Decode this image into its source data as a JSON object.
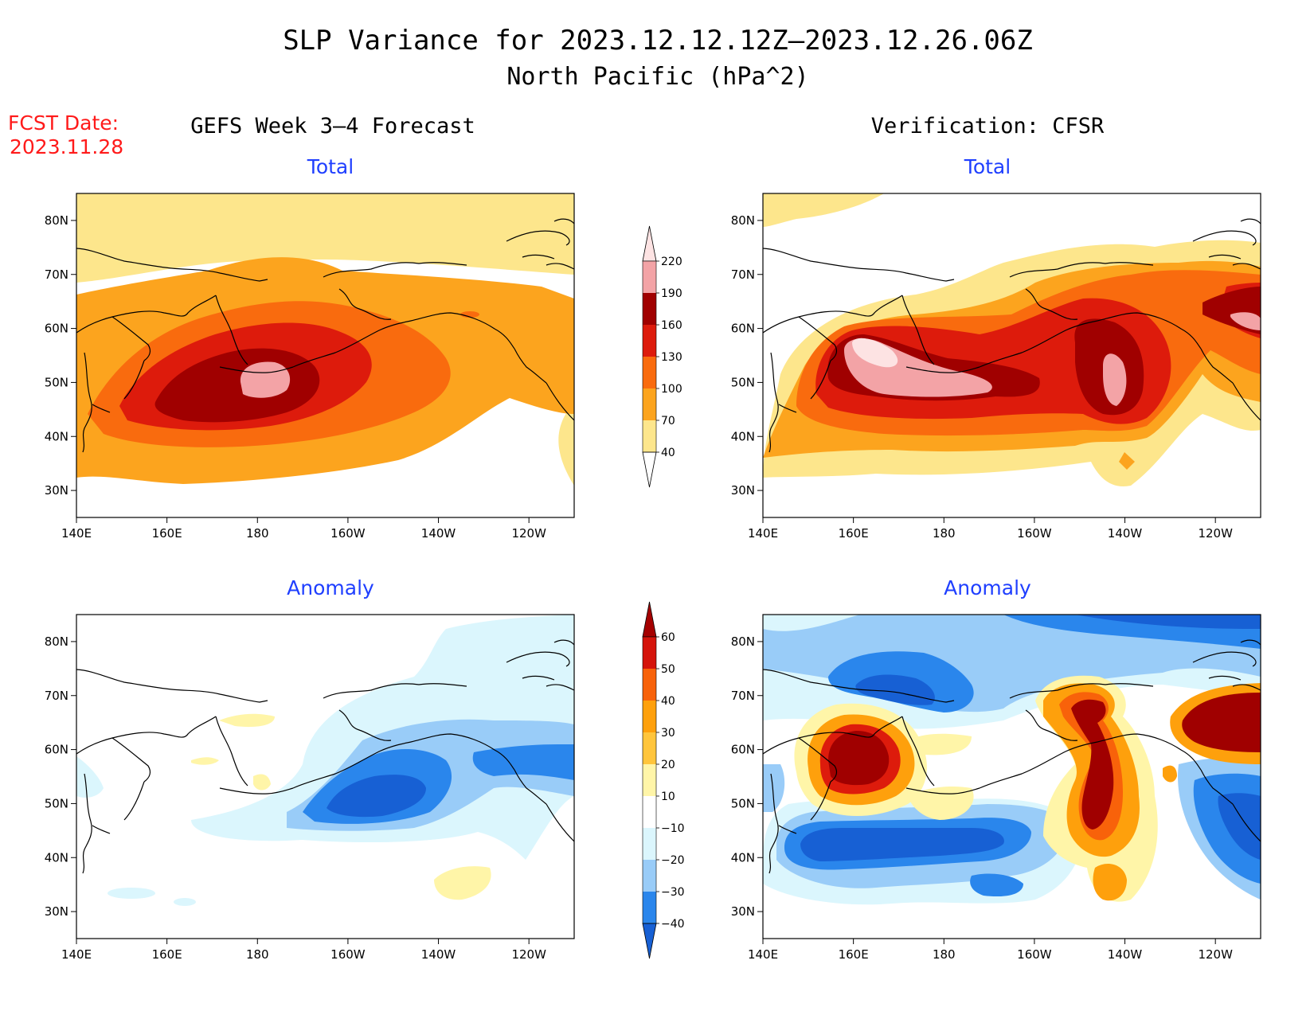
{
  "title": {
    "line1": "SLP Variance for 2023.12.12.12Z–2023.12.26.06Z",
    "line2": "North Pacific (hPa^2)"
  },
  "fcst": {
    "line1": "FCST Date:",
    "line2": "2023.11.28"
  },
  "columns": {
    "left": "GEFS Week 3–4 Forecast",
    "right": "Verification: CFSR"
  },
  "panel_titles": {
    "total": "Total",
    "anomaly": "Anomaly"
  },
  "axes": {
    "lon_labels": [
      "140E",
      "160E",
      "180",
      "160W",
      "140W",
      "120W"
    ],
    "lon_values": [
      140,
      160,
      180,
      200,
      220,
      240
    ],
    "lat_labels": [
      "80N",
      "70N",
      "60N",
      "50N",
      "40N",
      "30N"
    ],
    "lat_values": [
      80,
      70,
      60,
      50,
      40,
      30
    ],
    "lon_range": [
      140,
      250
    ],
    "lat_range": [
      25,
      85
    ]
  },
  "colorbars": {
    "total": {
      "levels": [
        "40",
        "70",
        "100",
        "130",
        "160",
        "190",
        "220"
      ],
      "colors": [
        "#ffffff",
        "#fde68c",
        "#fca41e",
        "#f96b0e",
        "#dd1b0c",
        "#a00000",
        "#f3a3a6",
        "#fde3e3"
      ]
    },
    "anomaly": {
      "levels": [
        "−40",
        "−30",
        "−20",
        "−10",
        "10",
        "20",
        "30",
        "40",
        "50",
        "60"
      ],
      "colors": [
        "#1760d4",
        "#2a86ec",
        "#99ccf8",
        "#dbf6fd",
        "#ffffff",
        "#fff5a8",
        "#ffc53c",
        "#fea00c",
        "#f8620a",
        "#d5140b",
        "#a50000"
      ]
    }
  },
  "chart_data": [
    {
      "type": "heatmap",
      "panel": "forecast-total",
      "title": "Total",
      "units": "hPa^2",
      "features": [
        {
          "lon": 180,
          "lat": 50,
          "value": 200
        },
        {
          "lon": 175,
          "lat": 49,
          "value": 170
        },
        {
          "lon": 180,
          "lat": 60,
          "value": 95
        },
        {
          "lon": 220,
          "lat": 55,
          "value": 85
        },
        {
          "lon": 160,
          "lat": 70,
          "value": 50
        }
      ]
    },
    {
      "type": "heatmap",
      "panel": "verification-total",
      "title": "Total",
      "units": "hPa^2",
      "features": [
        {
          "lon": 166,
          "lat": 53,
          "value": 230
        },
        {
          "lon": 180,
          "lat": 50,
          "value": 205
        },
        {
          "lon": 219,
          "lat": 49,
          "value": 200
        },
        {
          "lon": 248,
          "lat": 58,
          "value": 200
        },
        {
          "lon": 215,
          "lat": 59,
          "value": 165
        }
      ]
    },
    {
      "type": "heatmap",
      "panel": "forecast-anomaly",
      "title": "Anomaly",
      "units": "hPa^2",
      "features": [
        {
          "lon": 205,
          "lat": 50,
          "value": -35
        },
        {
          "lon": 225,
          "lat": 53,
          "value": -25
        },
        {
          "lon": 223,
          "lat": 34,
          "value": 15
        },
        {
          "lon": 180,
          "lat": 66,
          "value": 12
        }
      ]
    },
    {
      "type": "heatmap",
      "panel": "verification-anomaly",
      "title": "Anomaly",
      "units": "hPa^2",
      "features": [
        {
          "lon": 165,
          "lat": 56,
          "value": 65
        },
        {
          "lon": 220,
          "lat": 46,
          "value": 65
        },
        {
          "lon": 213,
          "lat": 63,
          "value": 55
        },
        {
          "lon": 249,
          "lat": 62,
          "value": 60
        },
        {
          "lon": 190,
          "lat": 44,
          "value": -40
        },
        {
          "lon": 180,
          "lat": 70,
          "value": -40
        },
        {
          "lon": 243,
          "lat": 44,
          "value": -35
        },
        {
          "lon": 220,
          "lat": 82,
          "value": -40
        }
      ]
    }
  ]
}
